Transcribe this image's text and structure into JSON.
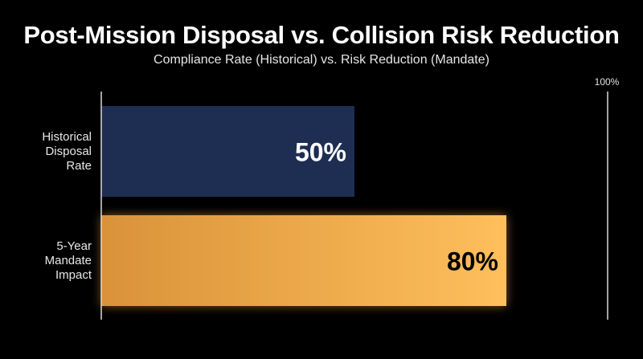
{
  "title": "Post-Mission Disposal vs. Collision Risk Reduction",
  "subtitle": "Compliance Rate (Historical) vs. Risk Reduction (Mandate)",
  "colors": {
    "historical_bar": "#1e2d52",
    "mandate_bar_light": "#ffbf5c",
    "mandate_bar_dark": "#d9923a",
    "mandate_glow": "#f5a33a",
    "historical_value_text": "#ffffff",
    "mandate_value_text": "#000000",
    "axis_line": "#d9d9d9"
  },
  "chart_data": {
    "type": "bar",
    "orientation": "horizontal",
    "categories": [
      "Historical Disposal Rate",
      "5-Year Mandate Impact"
    ],
    "category_label_lines": [
      [
        "Historical",
        "Disposal",
        "Rate"
      ],
      [
        "5-Year",
        "Mandate",
        "Impact"
      ]
    ],
    "values": [
      50,
      80
    ],
    "value_labels": [
      "50%",
      "80%"
    ],
    "xlim": [
      0,
      100
    ],
    "max_label": "100%",
    "grid": false,
    "legend": "none"
  }
}
